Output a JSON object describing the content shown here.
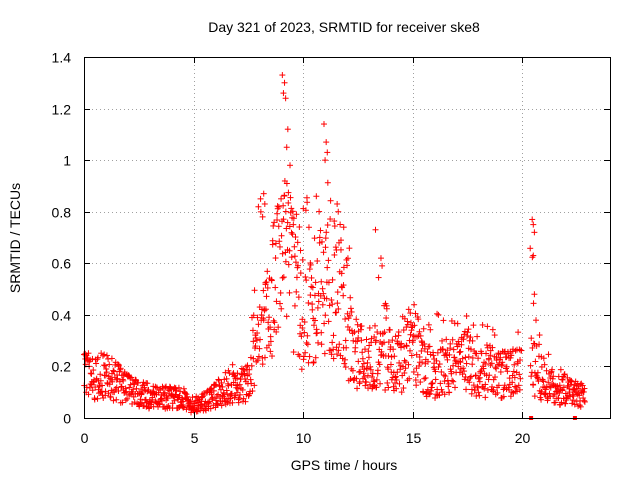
{
  "chart_data": {
    "type": "scatter",
    "title": "Day 321 of 2023, SRMTID for receiver ske8",
    "xlabel": "GPS time / hours",
    "ylabel": "SRMTID / TECUs",
    "xlim": [
      0,
      24
    ],
    "ylim": [
      0,
      1.4
    ],
    "x_ticks": [
      0,
      5,
      10,
      15,
      20
    ],
    "x_tick_labels": [
      "0",
      "5",
      "10",
      "15",
      "20"
    ],
    "y_ticks": [
      0,
      0.2,
      0.4,
      0.6,
      0.8,
      1.0,
      1.2,
      1.4
    ],
    "y_tick_labels": [
      "0",
      "0.2",
      "0.4",
      "0.6",
      "0.8",
      "1",
      "1.2",
      "1.4"
    ],
    "grid": true,
    "marker": "+",
    "color": "#ff0000",
    "series": [
      {
        "name": "SRMTID",
        "envelope": {
          "x": [
            0.0,
            0.5,
            1.0,
            1.5,
            2.0,
            2.5,
            3.0,
            3.5,
            4.0,
            4.5,
            5.0,
            5.5,
            6.0,
            6.5,
            7.0,
            7.5,
            8.0,
            8.5,
            9.0,
            9.5,
            10.0,
            10.5,
            11.0,
            11.5,
            12.0,
            12.5,
            13.0,
            13.5,
            14.0,
            14.5,
            15.0,
            15.5,
            16.0,
            16.5,
            17.0,
            17.5,
            18.0,
            18.5,
            19.0,
            19.5,
            19.9,
            20.4,
            20.6,
            21.0,
            21.5,
            22.0,
            22.5,
            22.9
          ],
          "y": [
            0.16,
            0.15,
            0.16,
            0.14,
            0.11,
            0.09,
            0.08,
            0.08,
            0.08,
            0.07,
            0.04,
            0.06,
            0.09,
            0.11,
            0.12,
            0.14,
            0.28,
            0.45,
            0.62,
            0.55,
            0.33,
            0.45,
            0.52,
            0.48,
            0.33,
            0.24,
            0.22,
            0.24,
            0.21,
            0.22,
            0.25,
            0.19,
            0.17,
            0.18,
            0.19,
            0.23,
            0.17,
            0.18,
            0.17,
            0.17,
            0.18,
            0.22,
            0.18,
            0.14,
            0.11,
            0.1,
            0.09,
            0.08
          ],
          "peak": [
            0.26,
            0.24,
            0.26,
            0.22,
            0.17,
            0.14,
            0.14,
            0.13,
            0.12,
            0.12,
            0.08,
            0.1,
            0.14,
            0.19,
            0.24,
            0.35,
            0.88,
            0.7,
            1.33,
            0.78,
            0.85,
            1.15,
            1.14,
            0.82,
            0.74,
            0.46,
            0.73,
            0.62,
            0.43,
            0.4,
            0.49,
            0.44,
            0.44,
            0.38,
            0.43,
            0.4,
            0.38,
            0.36,
            0.36,
            0.36,
            0.37,
            0.77,
            0.48,
            0.3,
            0.22,
            0.17,
            0.14,
            0.14
          ]
        },
        "gaps": [
          [
            19.95,
            20.35
          ],
          [
            22.85,
            24.0
          ]
        ],
        "points_per_hour": 60,
        "highlights": [
          {
            "x": 9.05,
            "y": 1.33
          },
          {
            "x": 9.15,
            "y": 1.3
          },
          {
            "x": 9.1,
            "y": 1.26
          },
          {
            "x": 9.2,
            "y": 1.24
          },
          {
            "x": 9.3,
            "y": 1.12
          },
          {
            "x": 9.25,
            "y": 1.05
          },
          {
            "x": 9.4,
            "y": 0.98
          },
          {
            "x": 8.2,
            "y": 0.87
          },
          {
            "x": 8.25,
            "y": 0.83
          },
          {
            "x": 8.15,
            "y": 0.78
          },
          {
            "x": 10.95,
            "y": 1.14
          },
          {
            "x": 11.05,
            "y": 1.07
          },
          {
            "x": 11.1,
            "y": 1.03
          },
          {
            "x": 11.0,
            "y": 1.0
          },
          {
            "x": 10.6,
            "y": 0.86
          },
          {
            "x": 11.55,
            "y": 0.83
          },
          {
            "x": 11.6,
            "y": 0.8
          },
          {
            "x": 11.85,
            "y": 0.74
          },
          {
            "x": 13.3,
            "y": 0.73
          },
          {
            "x": 13.55,
            "y": 0.62
          },
          {
            "x": 13.6,
            "y": 0.59
          },
          {
            "x": 20.45,
            "y": 0.77
          },
          {
            "x": 20.5,
            "y": 0.75
          },
          {
            "x": 20.55,
            "y": 0.72
          },
          {
            "x": 20.5,
            "y": 0.63
          },
          {
            "x": 20.55,
            "y": 0.48
          }
        ],
        "baseline_markers": [
          {
            "x": 20.4,
            "y": 0.0
          },
          {
            "x": 22.4,
            "y": 0.0
          }
        ]
      }
    ]
  }
}
